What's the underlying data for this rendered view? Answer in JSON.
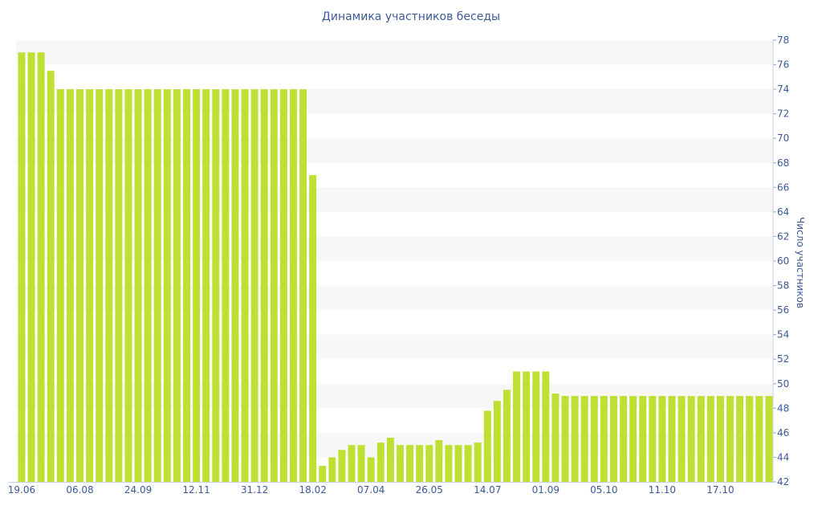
{
  "chart_data": {
    "type": "bar",
    "title": "Динамика участников беседы",
    "xlabel": "",
    "ylabel": "Число участников",
    "ylim": [
      42,
      78
    ],
    "yticks": [
      42,
      44,
      46,
      48,
      50,
      52,
      54,
      56,
      58,
      60,
      62,
      64,
      66,
      68,
      70,
      72,
      74,
      76,
      78
    ],
    "x_tick_labels": [
      {
        "label": "19.06",
        "index": 0
      },
      {
        "label": "06.08",
        "index": 6
      },
      {
        "label": "24.09",
        "index": 12
      },
      {
        "label": "12.11",
        "index": 18
      },
      {
        "label": "31.12",
        "index": 24
      },
      {
        "label": "18.02",
        "index": 30
      },
      {
        "label": "07.04",
        "index": 36
      },
      {
        "label": "26.05",
        "index": 42
      },
      {
        "label": "14.07",
        "index": 48
      },
      {
        "label": "01.09",
        "index": 54
      },
      {
        "label": "05.10",
        "index": 60
      },
      {
        "label": "11.10",
        "index": 66
      },
      {
        "label": "17.10",
        "index": 72
      }
    ],
    "bar_color": "#bde033",
    "band_color": "#f7f7f7",
    "grid": "alternating horizontal bands",
    "legend": "none",
    "values": [
      77,
      77,
      77,
      75.5,
      74,
      74,
      74,
      74,
      74,
      74,
      74,
      74,
      74,
      74,
      74,
      74,
      74,
      74,
      74,
      74,
      74,
      74,
      74,
      74,
      74,
      74,
      74,
      74,
      74,
      74,
      67,
      43.3,
      44,
      44.6,
      45,
      45,
      44,
      45.2,
      45.6,
      45,
      45,
      45,
      45,
      45.4,
      45,
      45,
      45,
      45.2,
      47.8,
      48.6,
      49.5,
      51,
      51,
      51,
      51,
      49.2,
      49,
      49,
      49,
      49,
      49,
      49,
      49,
      49,
      49,
      49,
      49,
      49,
      49,
      49,
      49,
      49,
      49,
      49,
      49,
      49,
      49,
      49
    ]
  }
}
